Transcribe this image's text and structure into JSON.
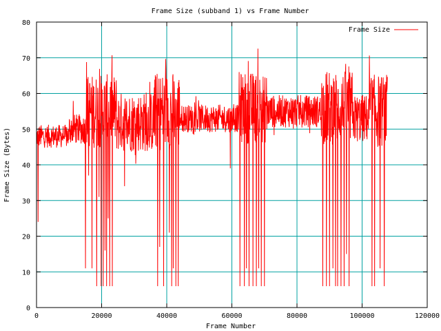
{
  "colors": {
    "grid": "#00a0a0",
    "series": "#ff0000",
    "axis": "#000000"
  },
  "chart_data": {
    "type": "line",
    "title": "Frame Size (subband 1) vs Frame Number",
    "xlabel": "Frame Number",
    "ylabel": "Frame Size (Bytes)",
    "xlim": [
      0,
      120000
    ],
    "ylim": [
      0,
      80
    ],
    "xticks": [
      0,
      20000,
      40000,
      60000,
      80000,
      100000,
      120000
    ],
    "yticks": [
      0,
      10,
      20,
      30,
      40,
      50,
      60,
      70,
      80
    ],
    "grid": true,
    "legend": {
      "position": "top-right"
    },
    "series": [
      {
        "name": "Frame Size",
        "color": "#ff0000",
        "x_range": [
          0,
          107800
        ],
        "mean_segments": [
          {
            "x": [
              0,
              10000
            ],
            "mean": 48,
            "band": [
              44,
              54
            ]
          },
          {
            "x": [
              10000,
              15000
            ],
            "mean": 50,
            "band": [
              45,
              58
            ]
          },
          {
            "x": [
              15000,
              24500
            ],
            "mean": 55,
            "band": [
              40,
              72
            ]
          },
          {
            "x": [
              24500,
              36000
            ],
            "mean": 52,
            "band": [
              40,
              66
            ]
          },
          {
            "x": [
              36000,
              44000
            ],
            "mean": 55,
            "band": [
              38,
              72
            ]
          },
          {
            "x": [
              44000,
              62000
            ],
            "mean": 53,
            "band": [
              48,
              60
            ]
          },
          {
            "x": [
              62000,
              71000
            ],
            "mean": 56,
            "band": [
              42,
              73
            ]
          },
          {
            "x": [
              71000,
              87500
            ],
            "mean": 55,
            "band": [
              48,
              62
            ]
          },
          {
            "x": [
              87500,
              97000
            ],
            "mean": 56,
            "band": [
              40,
              72
            ]
          },
          {
            "x": [
              97000,
              102000
            ],
            "mean": 53,
            "band": [
              44,
              65
            ]
          },
          {
            "x": [
              102000,
              107800
            ],
            "mean": 55,
            "band": [
              40,
              72
            ]
          }
        ],
        "dropouts": [
          {
            "x": 500,
            "y": 24
          },
          {
            "x": 15000,
            "y": 11
          },
          {
            "x": 16000,
            "y": 37
          },
          {
            "x": 17000,
            "y": 11
          },
          {
            "x": 18500,
            "y": 6
          },
          {
            "x": 19200,
            "y": 31
          },
          {
            "x": 19800,
            "y": 6
          },
          {
            "x": 20500,
            "y": 6
          },
          {
            "x": 21000,
            "y": 16
          },
          {
            "x": 21500,
            "y": 6
          },
          {
            "x": 22000,
            "y": 25
          },
          {
            "x": 22500,
            "y": 6
          },
          {
            "x": 23300,
            "y": 6
          },
          {
            "x": 27000,
            "y": 34
          },
          {
            "x": 37200,
            "y": 6
          },
          {
            "x": 37800,
            "y": 17
          },
          {
            "x": 39000,
            "y": 6
          },
          {
            "x": 40800,
            "y": 21
          },
          {
            "x": 41500,
            "y": 6
          },
          {
            "x": 42000,
            "y": 11
          },
          {
            "x": 42800,
            "y": 6
          },
          {
            "x": 43500,
            "y": 6
          },
          {
            "x": 59500,
            "y": 39
          },
          {
            "x": 62500,
            "y": 6
          },
          {
            "x": 63800,
            "y": 6
          },
          {
            "x": 64500,
            "y": 11
          },
          {
            "x": 65300,
            "y": 6
          },
          {
            "x": 66500,
            "y": 6
          },
          {
            "x": 67500,
            "y": 6
          },
          {
            "x": 68200,
            "y": 11
          },
          {
            "x": 69000,
            "y": 6
          },
          {
            "x": 70000,
            "y": 6
          },
          {
            "x": 87900,
            "y": 6
          },
          {
            "x": 89000,
            "y": 6
          },
          {
            "x": 90000,
            "y": 6
          },
          {
            "x": 91000,
            "y": 11
          },
          {
            "x": 91800,
            "y": 6
          },
          {
            "x": 92500,
            "y": 6
          },
          {
            "x": 93500,
            "y": 6
          },
          {
            "x": 94500,
            "y": 6
          },
          {
            "x": 95200,
            "y": 15
          },
          {
            "x": 96000,
            "y": 6
          },
          {
            "x": 103000,
            "y": 6
          },
          {
            "x": 103800,
            "y": 6
          },
          {
            "x": 105500,
            "y": 11
          },
          {
            "x": 106800,
            "y": 6
          },
          {
            "x": 107800,
            "y": 29
          }
        ]
      }
    ]
  }
}
